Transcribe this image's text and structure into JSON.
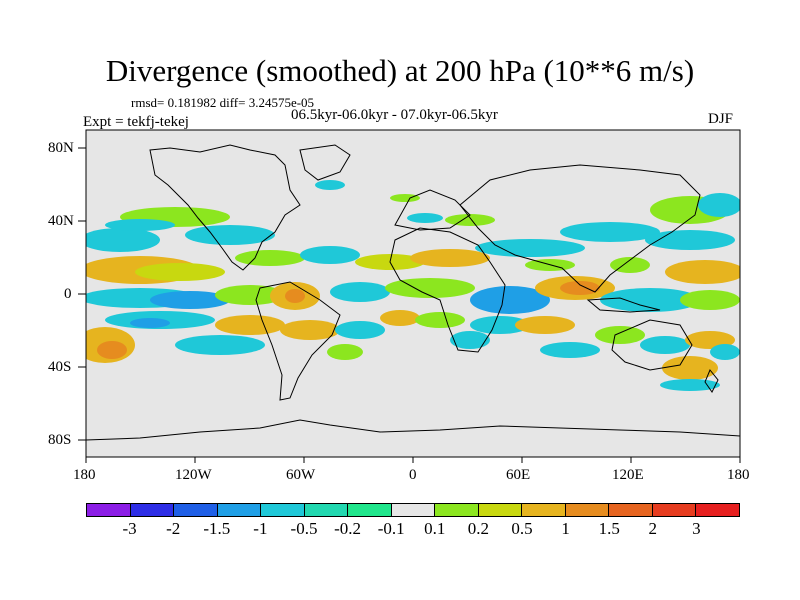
{
  "title": "Divergence (smoothed) at 200 hPa (10**6 m/s)",
  "stats": "rmsd= 0.181982 diff= 3.24575e-05",
  "periods": "06.5kyr-06.0kyr - 07.0kyr-06.5kyr",
  "experiment": "Expt = tekfj-tekej",
  "season": "DJF",
  "lat_labels": [
    "80N",
    "40N",
    "0",
    "40S",
    "80S"
  ],
  "lon_labels": [
    "180",
    "120W",
    "60W",
    "0",
    "60E",
    "120E",
    "180"
  ],
  "colorbar": {
    "labels": [
      "-3",
      "-2",
      "-1.5",
      "-1",
      "-0.5",
      "-0.2",
      "-0.1",
      "0.1",
      "0.2",
      "0.5",
      "1",
      "1.5",
      "2",
      "3"
    ],
    "colors": [
      "#8c1ee6",
      "#2e2ee6",
      "#1f5fe6",
      "#1f9fe6",
      "#1fc8d8",
      "#22d8b0",
      "#20e68c",
      "#e6e6e6",
      "#8ce61f",
      "#c8d810",
      "#e6b41f",
      "#e68c1f",
      "#e6641f",
      "#e63c1f",
      "#e61f1f"
    ]
  }
}
